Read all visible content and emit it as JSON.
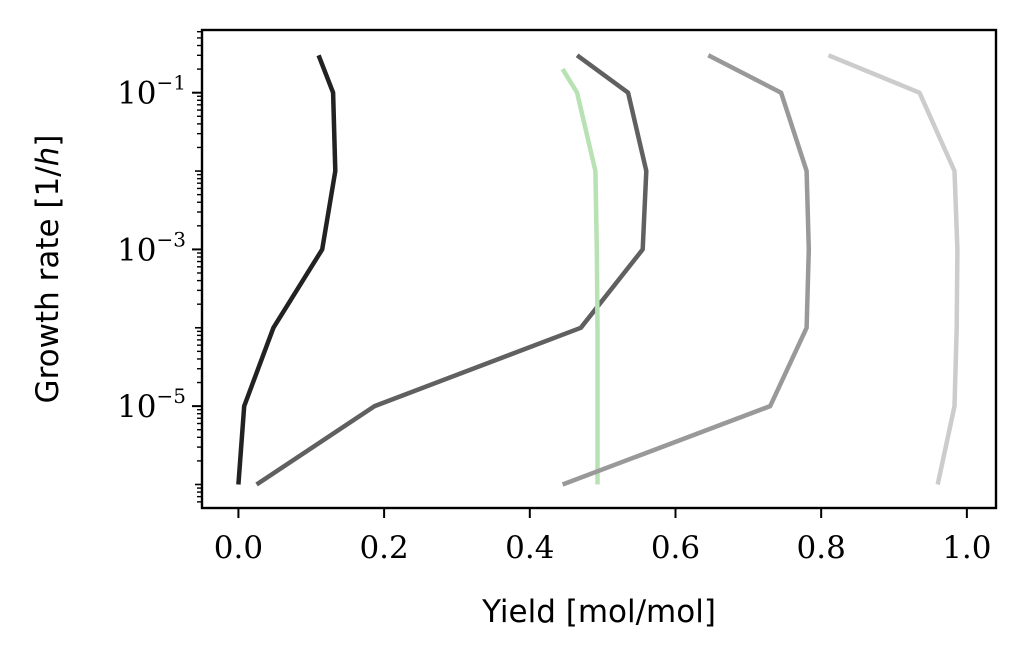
{
  "chart_data": {
    "type": "line",
    "xlabel": "Yield [mol/mol]",
    "ylabel": {
      "prefix": "Growth rate [1/",
      "italic": "h",
      "suffix": "]"
    },
    "xlim": [
      -0.05,
      1.04
    ],
    "ylim_log10": [
      -6.3,
      -0.2
    ],
    "y_scale": "log",
    "grid": false,
    "legend": "none",
    "x_ticks": [
      0.0,
      0.2,
      0.4,
      0.6,
      0.8,
      1.0
    ],
    "x_tick_labels": [
      "0.0",
      "0.2",
      "0.4",
      "0.6",
      "0.8",
      "1.0"
    ],
    "y_ticks": [
      {
        "exp": -1,
        "base": "10",
        "sup": "−1"
      },
      {
        "exp": -3,
        "base": "10",
        "sup": "−3"
      },
      {
        "exp": -5,
        "base": "10",
        "sup": "−5"
      }
    ],
    "series": [
      {
        "color": "#222222",
        "points": [
          [
            0.11,
            0.3
          ],
          [
            0.13,
            0.1
          ],
          [
            0.133,
            0.01
          ],
          [
            0.115,
            0.001
          ],
          [
            0.048,
            0.0001
          ],
          [
            0.008,
            1e-05
          ],
          [
            0.0,
            1e-06
          ]
        ]
      },
      {
        "color": "#606060",
        "points": [
          [
            0.465,
            0.3
          ],
          [
            0.535,
            0.1
          ],
          [
            0.56,
            0.01
          ],
          [
            0.555,
            0.001
          ],
          [
            0.47,
            0.0001
          ],
          [
            0.187,
            1e-05
          ],
          [
            0.025,
            1e-06
          ]
        ]
      },
      {
        "color": "#b8e2b4",
        "points": [
          [
            0.445,
            0.2
          ],
          [
            0.465,
            0.1
          ],
          [
            0.49,
            0.01
          ],
          [
            0.492,
            0.001
          ],
          [
            0.493,
            0.0001
          ],
          [
            0.493,
            1e-05
          ],
          [
            0.493,
            1e-06
          ]
        ]
      },
      {
        "color": "#999999",
        "points": [
          [
            0.645,
            0.3
          ],
          [
            0.745,
            0.1
          ],
          [
            0.78,
            0.01
          ],
          [
            0.783,
            0.001
          ],
          [
            0.78,
            0.0001
          ],
          [
            0.73,
            1e-05
          ],
          [
            0.445,
            1e-06
          ]
        ]
      },
      {
        "color": "#cccccc",
        "points": [
          [
            0.81,
            0.3
          ],
          [
            0.935,
            0.1
          ],
          [
            0.983,
            0.01
          ],
          [
            0.987,
            0.001
          ],
          [
            0.986,
            0.0001
          ],
          [
            0.983,
            1e-05
          ],
          [
            0.96,
            1e-06
          ]
        ]
      }
    ]
  }
}
